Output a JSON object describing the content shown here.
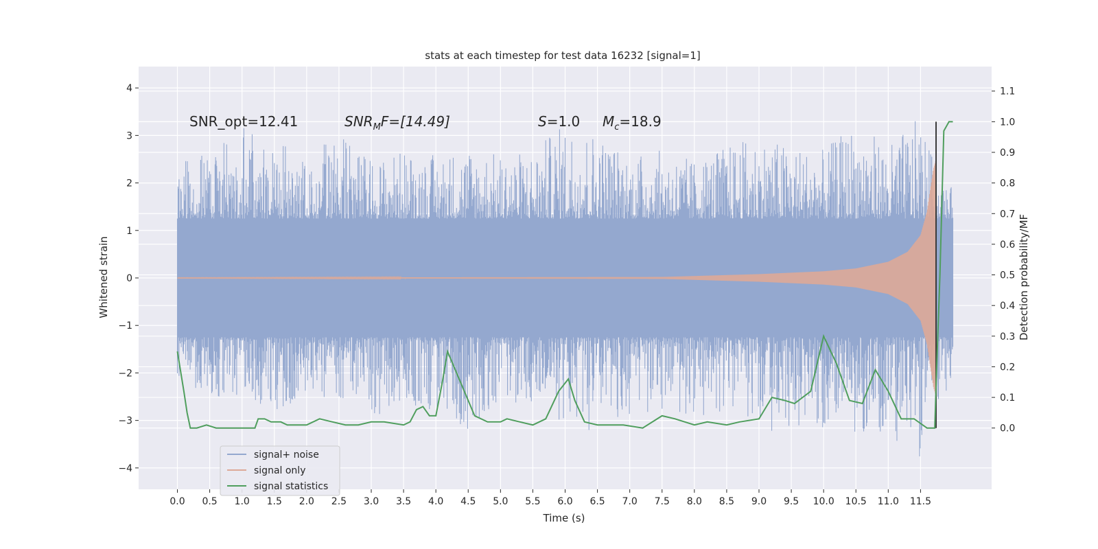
{
  "chart_data": {
    "type": "line",
    "title": "stats at each timestep for test data 16232 [signal=1]",
    "xlabel": "Time (s)",
    "ylabel": "Whitened strain",
    "ylabel_right": "Detection probability/MF",
    "xlim": [
      -0.6,
      12.6
    ],
    "ylim": [
      -4.45,
      4.45
    ],
    "ylim_right": [
      -0.2,
      1.18
    ],
    "x_ticks": [
      0.0,
      0.5,
      1.0,
      1.5,
      2.0,
      2.5,
      3.0,
      3.5,
      4.0,
      4.5,
      5.0,
      5.5,
      6.0,
      6.5,
      7.0,
      7.5,
      8.0,
      8.5,
      9.0,
      9.5,
      10.0,
      10.5,
      11.0,
      11.5
    ],
    "x_tick_labels": [
      "0.0",
      "0.5",
      "1.0",
      "1.5",
      "2.0",
      "2.5",
      "3.0",
      "3.5",
      "4.0",
      "4.5",
      "5.0",
      "5.5",
      "6.0",
      "6.5",
      "7.0",
      "7.5",
      "8.0",
      "8.5",
      "9.0",
      "9.5",
      "10.0",
      "10.5",
      "11.0",
      "11.5"
    ],
    "y_ticks": [
      -4,
      -3,
      -2,
      -1,
      0,
      1,
      2,
      3,
      4
    ],
    "y_tick_labels": [
      "−4",
      "−3",
      "−2",
      "−1",
      "0",
      "1",
      "2",
      "3",
      "4"
    ],
    "y_right_ticks": [
      0.0,
      0.1,
      0.2,
      0.3,
      0.4,
      0.5,
      0.6,
      0.7,
      0.8,
      0.9,
      1.0,
      1.1
    ],
    "y_right_tick_labels": [
      "0.0",
      "0.1",
      "0.2",
      "0.3",
      "0.4",
      "0.5",
      "0.6",
      "0.7",
      "0.8",
      "0.9",
      "1.0",
      "1.1"
    ],
    "grid": true,
    "legend_position": "bottom-left",
    "annotations": {
      "snr_opt": "SNR_opt=12.41",
      "snr_mf_main": "SNR",
      "snr_mf_sub": "M",
      "snr_mf_tail": "F=[14.49]",
      "s_main": "S",
      "s_tail": "=1.0",
      "mc_main": "M",
      "mc_sub": "c",
      "mc_tail": "=18.9"
    },
    "marker_line_x": 11.74,
    "series": [
      {
        "name": "signal+ noise",
        "color": "#94a8cf",
        "x_range": [
          0.0,
          12.0
        ],
        "core_envelope": 1.25,
        "envelope_points": [
          [
            0.0,
            2.6,
            -2.4
          ],
          [
            0.5,
            2.6,
            -2.5
          ],
          [
            1.0,
            3.2,
            -2.6
          ],
          [
            1.5,
            2.9,
            -2.8
          ],
          [
            2.0,
            2.6,
            -2.6
          ],
          [
            2.5,
            3.0,
            -2.6
          ],
          [
            3.0,
            2.5,
            -3.1
          ],
          [
            3.5,
            2.7,
            -2.7
          ],
          [
            4.0,
            2.6,
            -2.9
          ],
          [
            4.5,
            2.8,
            -3.2
          ],
          [
            5.0,
            2.6,
            -2.6
          ],
          [
            5.5,
            2.7,
            -2.7
          ],
          [
            6.0,
            3.3,
            -3.1
          ],
          [
            6.5,
            3.1,
            -3.3
          ],
          [
            7.0,
            2.6,
            -2.9
          ],
          [
            7.5,
            2.7,
            -2.9
          ],
          [
            8.0,
            2.5,
            -3.0
          ],
          [
            8.5,
            2.8,
            -2.8
          ],
          [
            9.0,
            3.0,
            -3.1
          ],
          [
            9.5,
            2.8,
            -3.4
          ],
          [
            10.0,
            2.7,
            -3.2
          ],
          [
            10.5,
            3.3,
            -3.3
          ],
          [
            11.0,
            2.8,
            -3.3
          ],
          [
            11.5,
            3.4,
            -3.9
          ],
          [
            11.8,
            2.0,
            -2.6
          ],
          [
            12.0,
            1.9,
            -2.3
          ]
        ]
      },
      {
        "name": "signal only",
        "color": "#dda997",
        "x_range": [
          0.0,
          11.74
        ],
        "envelope_points": [
          [
            0.0,
            0.005
          ],
          [
            7.5,
            0.02
          ],
          [
            8.0,
            0.04
          ],
          [
            9.0,
            0.08
          ],
          [
            10.0,
            0.14
          ],
          [
            10.5,
            0.2
          ],
          [
            11.0,
            0.34
          ],
          [
            11.3,
            0.55
          ],
          [
            11.5,
            0.9
          ],
          [
            11.6,
            1.4
          ],
          [
            11.7,
            2.3
          ],
          [
            11.74,
            2.5
          ]
        ]
      },
      {
        "name": "signal statistics",
        "color": "#4f9e5d",
        "axis": "right",
        "points": [
          [
            0.0,
            0.25
          ],
          [
            0.1,
            0.12
          ],
          [
            0.15,
            0.05
          ],
          [
            0.2,
            0.0
          ],
          [
            0.3,
            0.0
          ],
          [
            0.45,
            0.01
          ],
          [
            0.6,
            0.0
          ],
          [
            0.8,
            0.0
          ],
          [
            1.0,
            0.0
          ],
          [
            1.1,
            0.0
          ],
          [
            1.2,
            0.0
          ],
          [
            1.25,
            0.03
          ],
          [
            1.35,
            0.03
          ],
          [
            1.45,
            0.02
          ],
          [
            1.6,
            0.02
          ],
          [
            1.7,
            0.01
          ],
          [
            2.0,
            0.01
          ],
          [
            2.2,
            0.03
          ],
          [
            2.4,
            0.02
          ],
          [
            2.6,
            0.01
          ],
          [
            2.8,
            0.01
          ],
          [
            3.0,
            0.02
          ],
          [
            3.2,
            0.02
          ],
          [
            3.5,
            0.01
          ],
          [
            3.6,
            0.02
          ],
          [
            3.7,
            0.06
          ],
          [
            3.8,
            0.07
          ],
          [
            3.9,
            0.04
          ],
          [
            4.0,
            0.04
          ],
          [
            4.1,
            0.15
          ],
          [
            4.18,
            0.25
          ],
          [
            4.3,
            0.19
          ],
          [
            4.4,
            0.14
          ],
          [
            4.6,
            0.04
          ],
          [
            4.8,
            0.02
          ],
          [
            5.0,
            0.02
          ],
          [
            5.1,
            0.03
          ],
          [
            5.3,
            0.02
          ],
          [
            5.5,
            0.01
          ],
          [
            5.7,
            0.03
          ],
          [
            5.9,
            0.12
          ],
          [
            6.05,
            0.16
          ],
          [
            6.15,
            0.09
          ],
          [
            6.3,
            0.02
          ],
          [
            6.5,
            0.01
          ],
          [
            6.7,
            0.01
          ],
          [
            6.9,
            0.01
          ],
          [
            7.2,
            0.0
          ],
          [
            7.5,
            0.04
          ],
          [
            7.7,
            0.03
          ],
          [
            8.0,
            0.01
          ],
          [
            8.2,
            0.02
          ],
          [
            8.5,
            0.01
          ],
          [
            8.7,
            0.02
          ],
          [
            9.0,
            0.03
          ],
          [
            9.2,
            0.1
          ],
          [
            9.4,
            0.09
          ],
          [
            9.55,
            0.08
          ],
          [
            9.8,
            0.12
          ],
          [
            10.0,
            0.3
          ],
          [
            10.2,
            0.21
          ],
          [
            10.4,
            0.09
          ],
          [
            10.6,
            0.08
          ],
          [
            10.8,
            0.19
          ],
          [
            11.0,
            0.12
          ],
          [
            11.2,
            0.03
          ],
          [
            11.4,
            0.03
          ],
          [
            11.6,
            0.0
          ],
          [
            11.72,
            0.0
          ],
          [
            11.75,
            0.2
          ],
          [
            11.8,
            0.5
          ],
          [
            11.86,
            0.97
          ],
          [
            11.94,
            1.0
          ],
          [
            12.0,
            1.0
          ]
        ]
      }
    ]
  }
}
